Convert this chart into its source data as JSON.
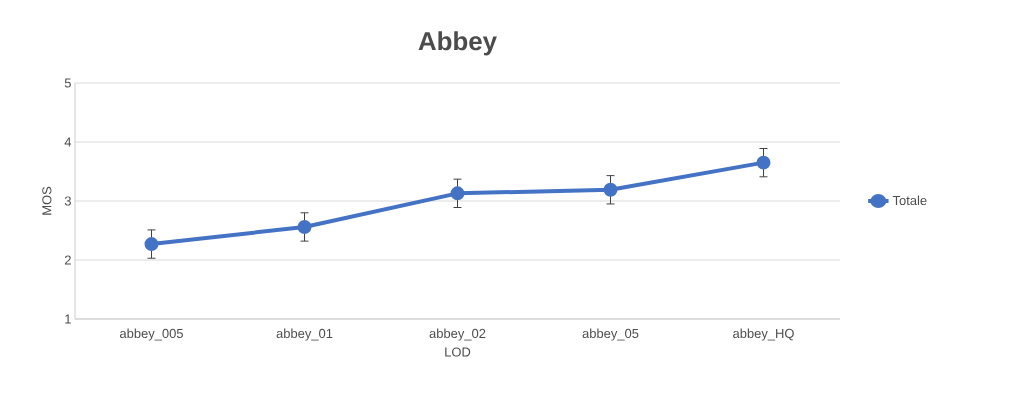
{
  "chart_data": {
    "type": "line",
    "title": "Abbey",
    "xlabel": "LOD",
    "ylabel": "MOS",
    "categories": [
      "abbey_005",
      "abbey_01",
      "abbey_02",
      "abbey_05",
      "abbey_HQ"
    ],
    "series": [
      {
        "name": "Totale",
        "color": "#4472c4",
        "values": [
          2.27,
          2.56,
          3.13,
          3.19,
          3.65
        ],
        "errors": [
          0.24,
          0.24,
          0.24,
          0.24,
          0.24
        ]
      }
    ],
    "ylim": [
      1,
      5
    ],
    "yticks": [
      1,
      2,
      3,
      4,
      5
    ],
    "grid": "y",
    "legend": "right",
    "marker": "circle",
    "line_style": "solid"
  }
}
